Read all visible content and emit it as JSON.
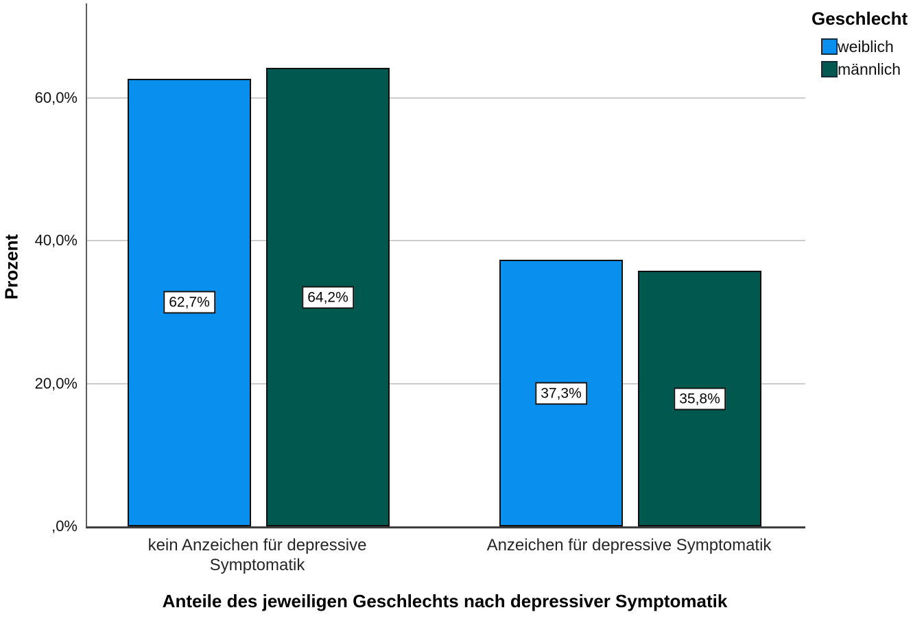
{
  "chart_data": {
    "type": "bar",
    "title": "Anteile des jeweiligen Geschlechts nach depressiver Symptomatik",
    "ylabel": "Prozent",
    "legend_title": "Geschlecht",
    "legend_position": "top-right",
    "grid": "horizontal",
    "categories": [
      "kein Anzeichen für depressive Symptomatik",
      "Anzeichen für depressive Symptomatik"
    ],
    "category_display": [
      "kein Anzeichen für depressive\nSymptomatik",
      "Anzeichen für depressive Symptomatik"
    ],
    "series": [
      {
        "name": "weiblich",
        "color": "#0990ee",
        "values": [
          62.7,
          37.3
        ],
        "data_labels": [
          "62,7%",
          "37,3%"
        ]
      },
      {
        "name": "männlich",
        "color": "#01584f",
        "values": [
          64.2,
          35.8
        ],
        "data_labels": [
          "64,2%",
          "35,8%"
        ]
      }
    ],
    "y_axis": {
      "max": 73.25,
      "ticks": [
        {
          "value": 0,
          "label": ",0%"
        },
        {
          "value": 20,
          "label": "20,0%"
        },
        {
          "value": 40,
          "label": "40,0%"
        },
        {
          "value": 60,
          "label": "60,0%"
        }
      ]
    }
  },
  "colors": {
    "weiblich": "#0990ee",
    "maennlich": "#01584f",
    "axis": "#5a5a5a",
    "gridline": "#cccccc",
    "bar_border": "#0e0e0e",
    "label_box_bg": "#ffffff",
    "background": "#ffffff"
  }
}
